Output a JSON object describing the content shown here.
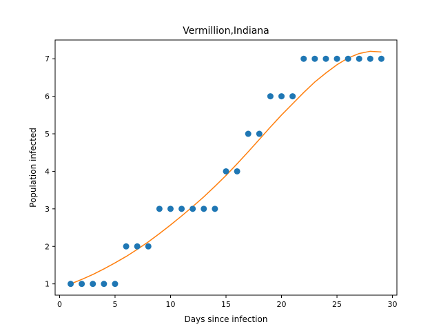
{
  "chart_data": {
    "type": "scatter",
    "title": "Vermillion,Indiana",
    "xlabel": "Days since infection",
    "ylabel": "Population infected",
    "xlim": [
      -0.4,
      30.4
    ],
    "ylim": [
      0.7,
      7.5
    ],
    "xticks": [
      0,
      5,
      10,
      15,
      20,
      25,
      30
    ],
    "yticks": [
      1,
      2,
      3,
      4,
      5,
      6,
      7
    ],
    "grid": false,
    "series": [
      {
        "kind": "scatter",
        "color": "#1f77b4",
        "x": [
          1,
          2,
          3,
          4,
          5,
          6,
          7,
          8,
          9,
          10,
          11,
          12,
          13,
          14,
          15,
          16,
          17,
          18,
          19,
          20,
          21,
          22,
          23,
          24,
          25,
          26,
          27,
          28,
          29
        ],
        "y": [
          1,
          1,
          1,
          1,
          1,
          2,
          2,
          2,
          3,
          3,
          3,
          3,
          3,
          3,
          4,
          4,
          5,
          5,
          6,
          6,
          6,
          7,
          7,
          7,
          7,
          7,
          7,
          7,
          7
        ]
      },
      {
        "kind": "line",
        "color": "#ff7f0e",
        "x": [
          1,
          2,
          3,
          4,
          5,
          6,
          7,
          8,
          9,
          10,
          11,
          12,
          13,
          14,
          15,
          16,
          17,
          18,
          19,
          20,
          21,
          22,
          23,
          24,
          25,
          26,
          27,
          28,
          29
        ],
        "y": [
          1.0,
          1.12,
          1.25,
          1.4,
          1.56,
          1.73,
          1.92,
          2.12,
          2.34,
          2.57,
          2.81,
          3.06,
          3.32,
          3.6,
          3.89,
          4.2,
          4.52,
          4.85,
          5.18,
          5.5,
          5.8,
          6.1,
          6.38,
          6.62,
          6.84,
          7.02,
          7.14,
          7.2,
          7.18
        ]
      }
    ]
  }
}
